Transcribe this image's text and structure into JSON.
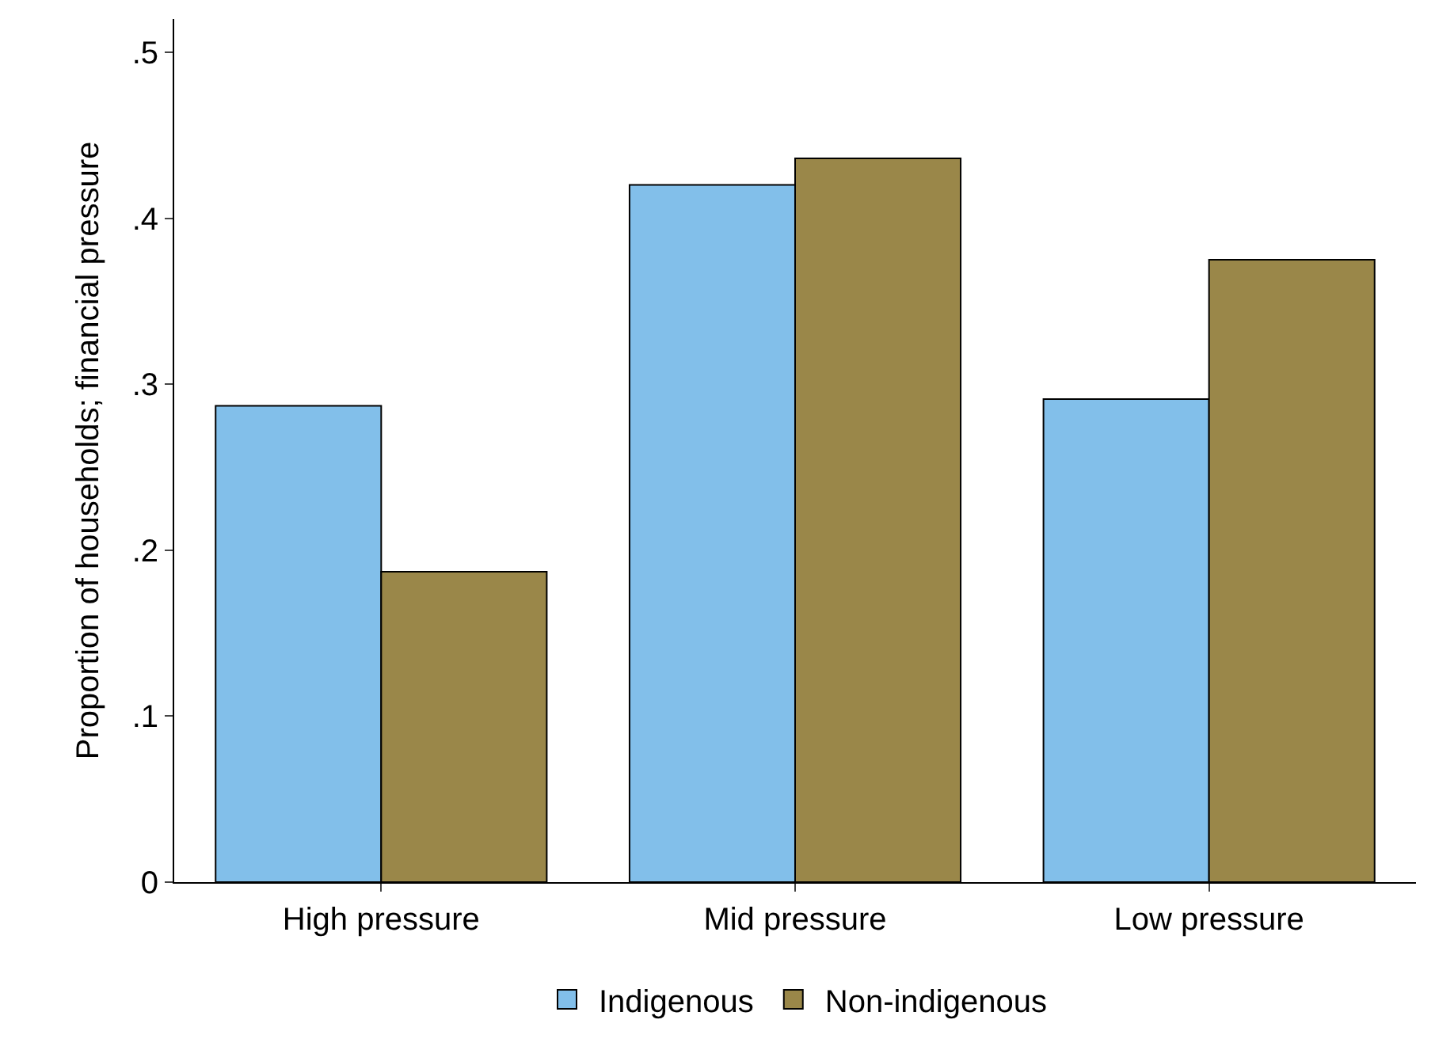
{
  "chart_data": {
    "type": "bar",
    "ylabel": "Proportion of households; financial pressure",
    "categories": [
      "High pressure",
      "Mid pressure",
      "Low pressure"
    ],
    "series": [
      {
        "name": "Indigenous",
        "color": "#82bfea",
        "values": [
          0.287,
          0.42,
          0.291
        ]
      },
      {
        "name": "Non-indigenous",
        "color": "#9a8749",
        "values": [
          0.187,
          0.436,
          0.375
        ]
      }
    ],
    "ylim": [
      0,
      0.52
    ],
    "yticks": [
      0,
      {
        "value": 0.1,
        "label": ".1"
      },
      {
        "value": 0.2,
        "label": ".2"
      },
      {
        "value": 0.3,
        "label": ".3"
      },
      {
        "value": 0.4,
        "label": ".4"
      },
      {
        "value": 0.5,
        "label": ".5"
      }
    ],
    "legend": "bottom"
  }
}
